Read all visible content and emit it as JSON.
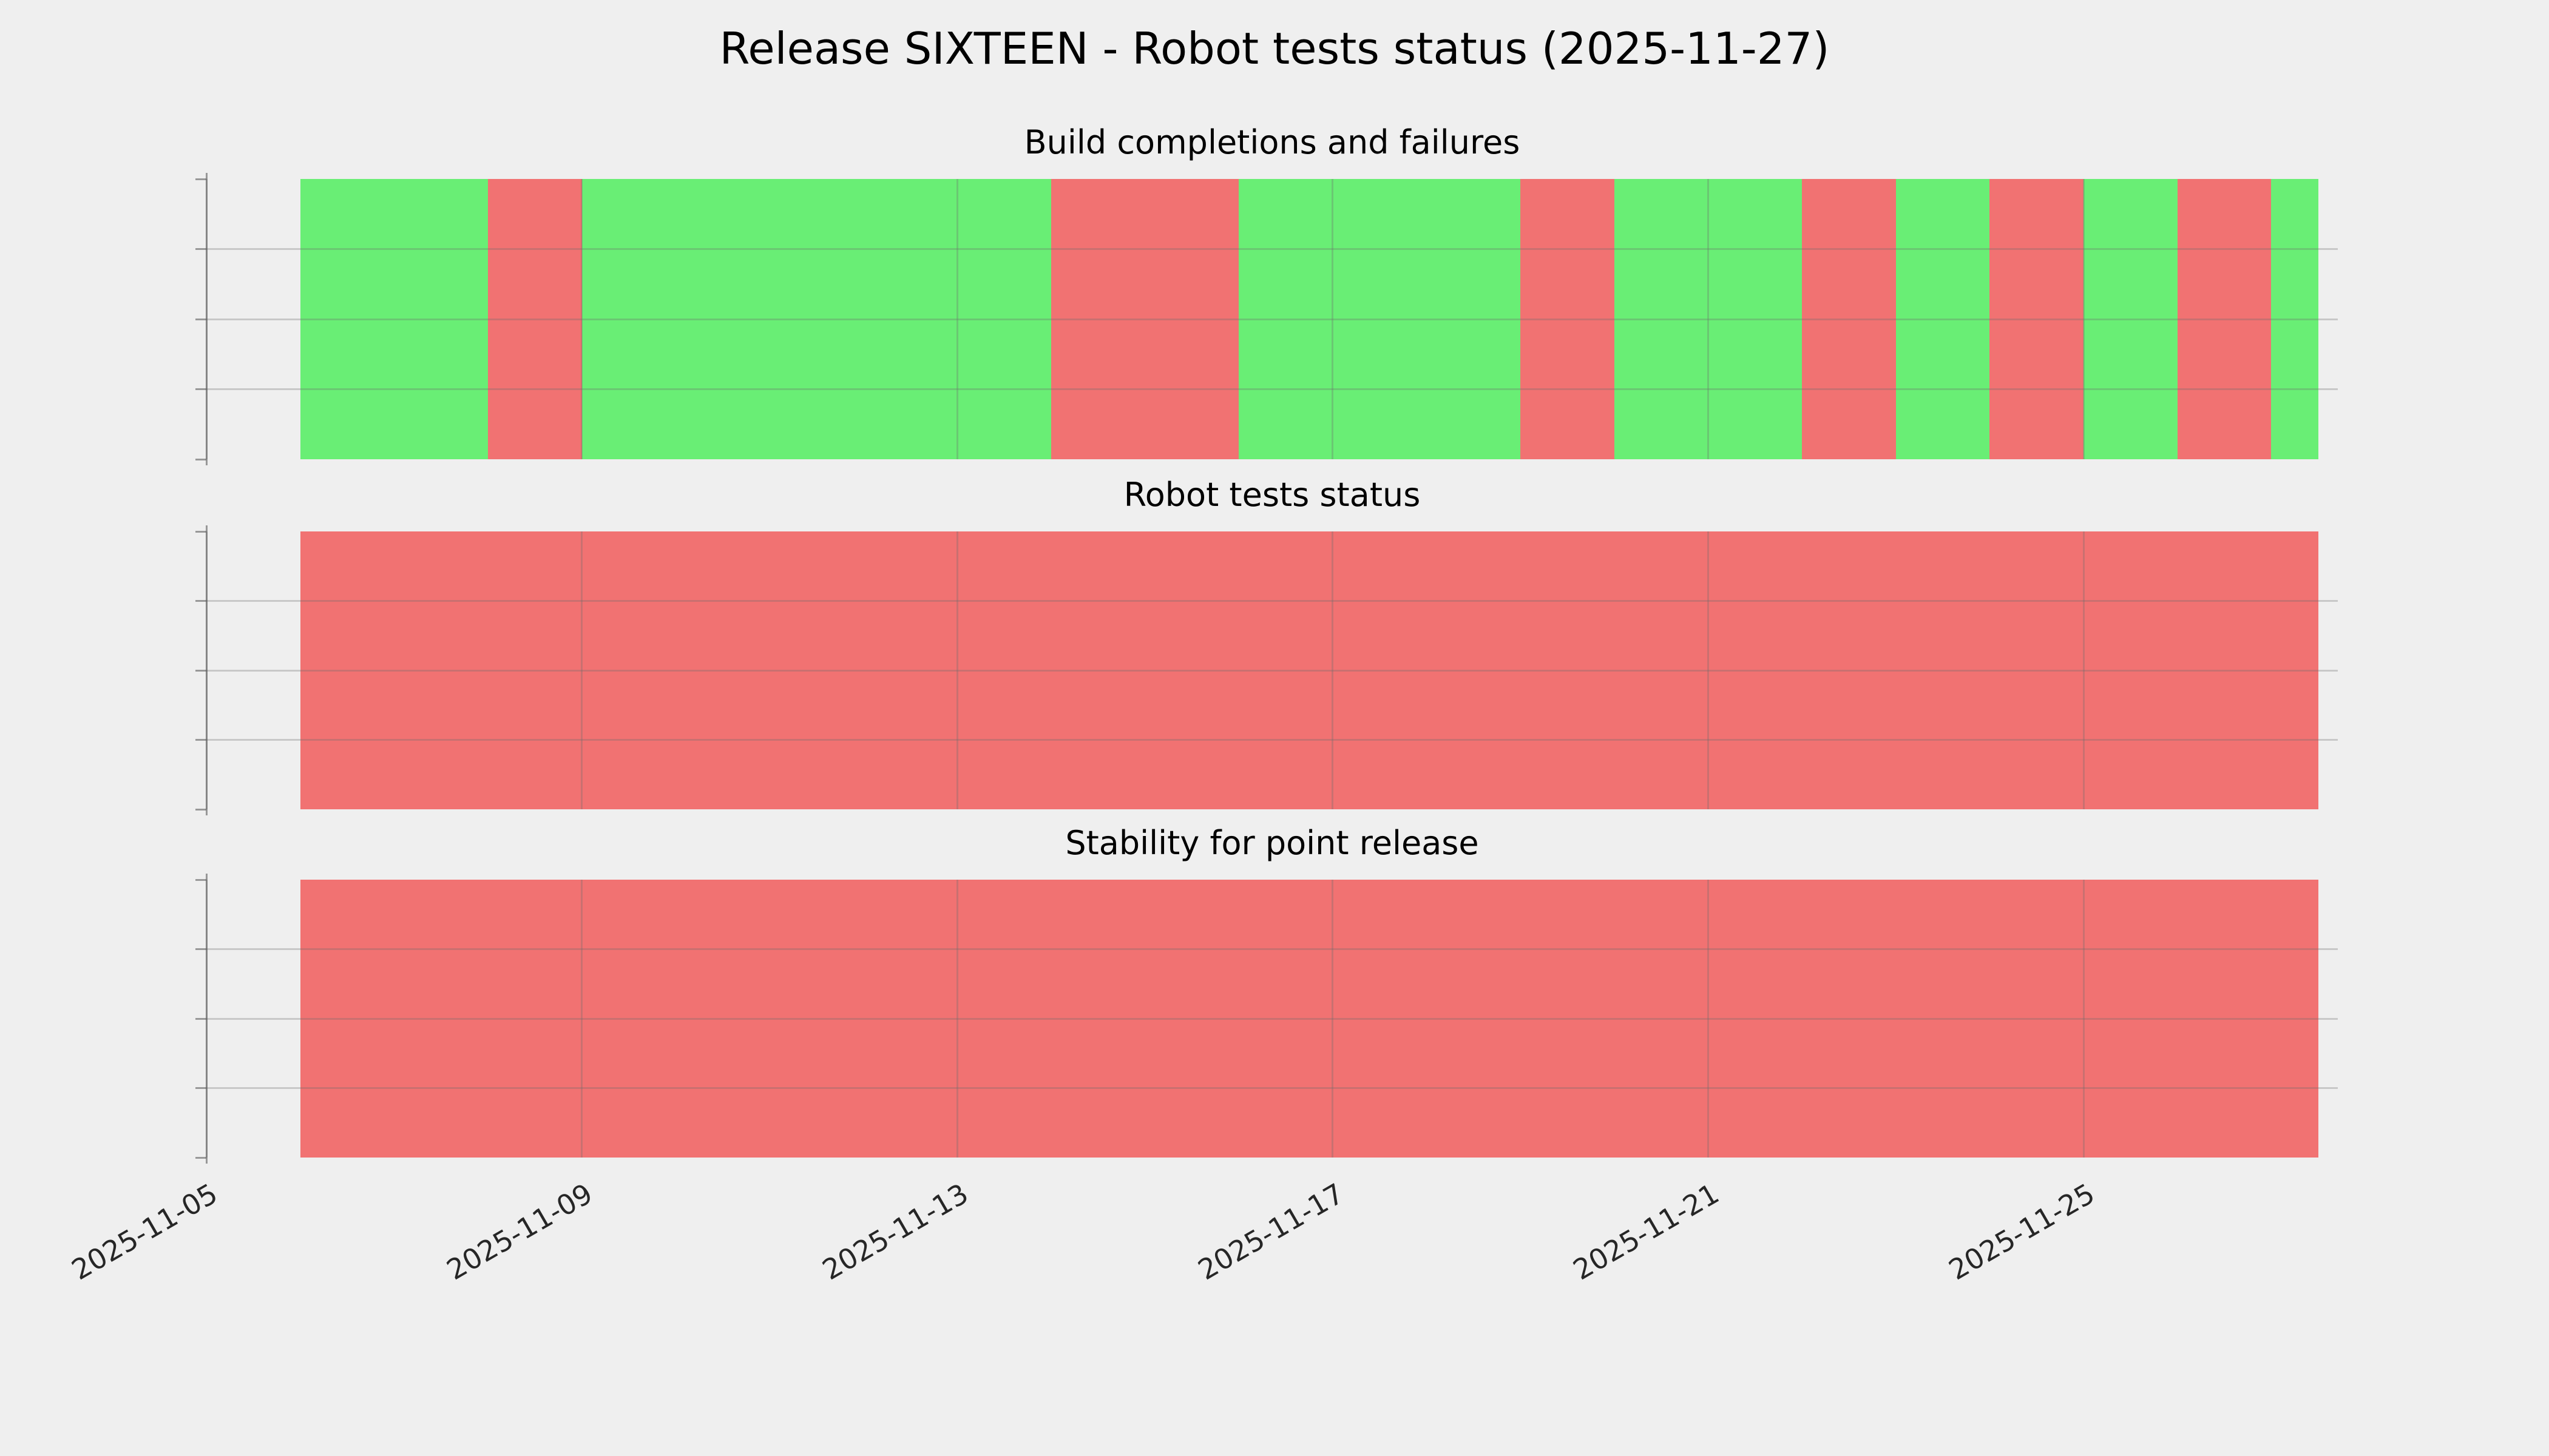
{
  "title": "Release SIXTEEN - Robot tests status (2025-11-27)",
  "colors": {
    "success": "#69ee75",
    "failure": "#f17272",
    "background": "#efefef",
    "grid": "#999999"
  },
  "x_axis": {
    "start": "2025-11-05",
    "end": "2025-11-27T17:00:00",
    "tick_labels": [
      "2025-11-05",
      "2025-11-09",
      "2025-11-13",
      "2025-11-17",
      "2025-11-21",
      "2025-11-25"
    ],
    "tick_rotation_deg": 30,
    "grid": true
  },
  "chart_data": [
    {
      "type": "bar",
      "title": "Build completions and failures",
      "segments": [
        {
          "start": "2025-11-06",
          "end": "2025-11-08",
          "status": "success"
        },
        {
          "start": "2025-11-08",
          "end": "2025-11-09",
          "status": "failure"
        },
        {
          "start": "2025-11-09",
          "end": "2025-11-14",
          "status": "success"
        },
        {
          "start": "2025-11-14",
          "end": "2025-11-16",
          "status": "failure"
        },
        {
          "start": "2025-11-16",
          "end": "2025-11-19",
          "status": "success"
        },
        {
          "start": "2025-11-19",
          "end": "2025-11-20",
          "status": "failure"
        },
        {
          "start": "2025-11-20",
          "end": "2025-11-22",
          "status": "success"
        },
        {
          "start": "2025-11-22",
          "end": "2025-11-23",
          "status": "failure"
        },
        {
          "start": "2025-11-23",
          "end": "2025-11-24",
          "status": "success"
        },
        {
          "start": "2025-11-24",
          "end": "2025-11-25",
          "status": "failure"
        },
        {
          "start": "2025-11-25",
          "end": "2025-11-26",
          "status": "success"
        },
        {
          "start": "2025-11-26",
          "end": "2025-11-27",
          "status": "failure"
        },
        {
          "start": "2025-11-27",
          "end": "2025-11-27T12:00:00",
          "status": "success"
        }
      ]
    },
    {
      "type": "bar",
      "title": "Robot tests status",
      "segments": [
        {
          "start": "2025-11-06",
          "end": "2025-11-27T12:00:00",
          "status": "failure"
        }
      ]
    },
    {
      "type": "bar",
      "title": "Stability for point release",
      "segments": [
        {
          "start": "2025-11-06",
          "end": "2025-11-27T12:00:00",
          "status": "failure"
        }
      ]
    }
  ]
}
